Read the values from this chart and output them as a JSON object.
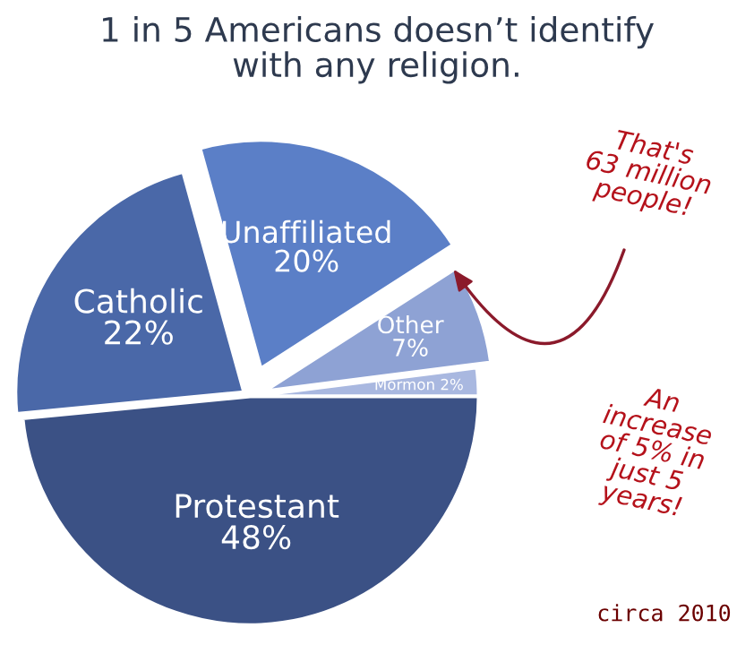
{
  "chart_data": {
    "type": "pie",
    "title": "1 in 5 Americans doesn’t identify\nwith any religion.",
    "categories": [
      "Mormon",
      "Other",
      "Unaffiliated",
      "Catholic",
      "Protestant"
    ],
    "values": [
      2,
      7,
      20,
      22,
      48
    ],
    "value_labels": [
      "2%",
      "7%",
      "20%",
      "22%",
      "48%"
    ],
    "colors": [
      "#a9b8e0",
      "#8ea2d4",
      "#5b7fc7",
      "#4a68a8",
      "#3b5185"
    ],
    "annotations": [
      "That's\n63 million\npeople!",
      "An\nincrease\nof 5% in\njust 5\nyears!",
      "circa 2010"
    ]
  }
}
